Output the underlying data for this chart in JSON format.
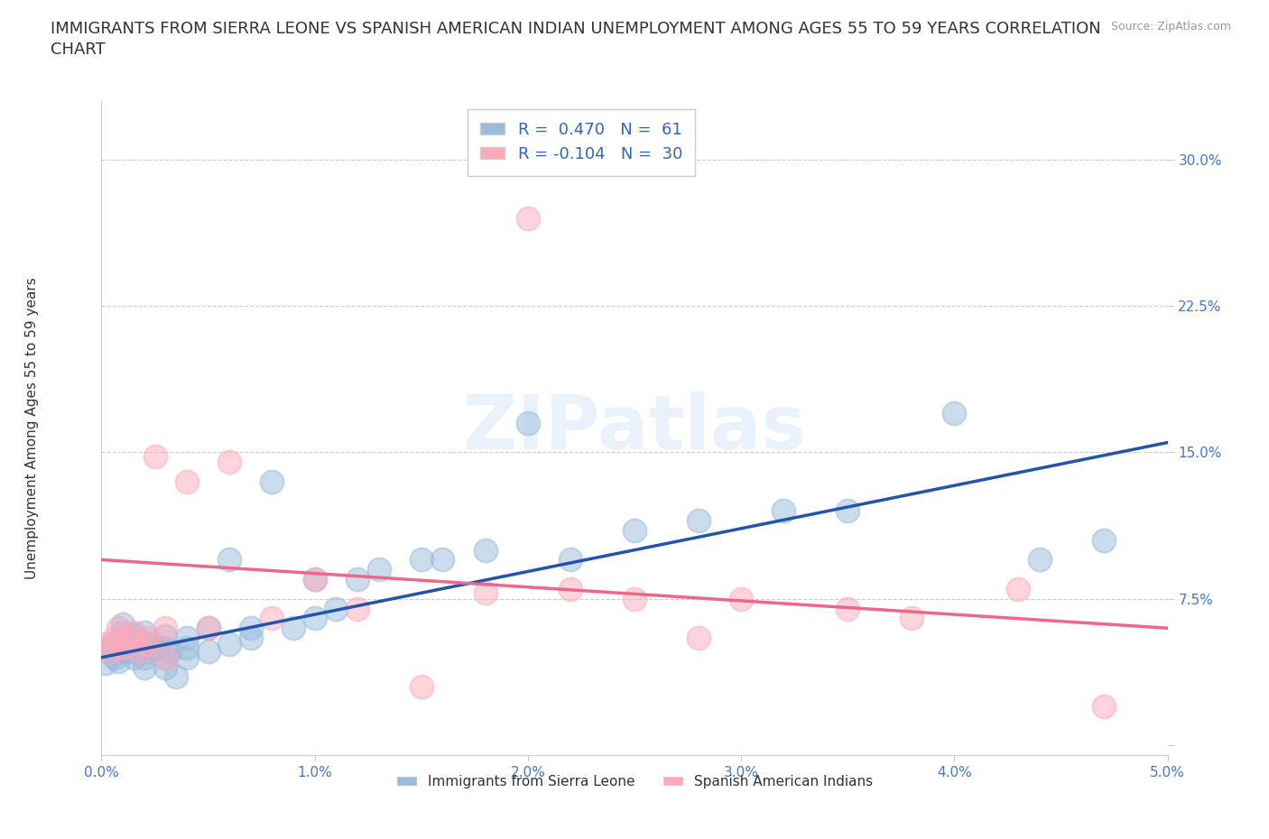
{
  "title_line1": "IMMIGRANTS FROM SIERRA LEONE VS SPANISH AMERICAN INDIAN UNEMPLOYMENT AMONG AGES 55 TO 59 YEARS CORRELATION",
  "title_line2": "CHART",
  "source_text": "Source: ZipAtlas.com",
  "ylabel": "Unemployment Among Ages 55 to 59 years",
  "xlim": [
    0.0,
    0.05
  ],
  "ylim": [
    -0.005,
    0.33
  ],
  "xticks": [
    0.0,
    0.01,
    0.02,
    0.03,
    0.04,
    0.05
  ],
  "yticks": [
    0.0,
    0.075,
    0.15,
    0.225,
    0.3
  ],
  "xticklabels": [
    "0.0%",
    "1.0%",
    "2.0%",
    "3.0%",
    "4.0%",
    "5.0%"
  ],
  "yticklabels": [
    "",
    "7.5%",
    "15.0%",
    "22.5%",
    "30.0%"
  ],
  "blue_color": "#99BBDD",
  "pink_color": "#FFAABB",
  "blue_line_color": "#2255AA",
  "pink_line_color": "#EE6688",
  "legend_R_blue": "R =  0.470",
  "legend_N_blue": "N =  61",
  "legend_R_pink": "R = -0.104",
  "legend_N_pink": "N =  30",
  "watermark": "ZIPatlas",
  "blue_scatter_x": [
    0.0002,
    0.0003,
    0.0004,
    0.0005,
    0.0006,
    0.0007,
    0.0008,
    0.0009,
    0.001,
    0.001,
    0.001,
    0.001,
    0.0012,
    0.0013,
    0.0014,
    0.0015,
    0.0016,
    0.0017,
    0.0018,
    0.0019,
    0.002,
    0.002,
    0.002,
    0.002,
    0.0022,
    0.0024,
    0.0026,
    0.003,
    0.003,
    0.003,
    0.003,
    0.0032,
    0.0035,
    0.004,
    0.004,
    0.004,
    0.005,
    0.005,
    0.006,
    0.006,
    0.007,
    0.007,
    0.008,
    0.009,
    0.01,
    0.01,
    0.011,
    0.012,
    0.013,
    0.015,
    0.016,
    0.018,
    0.02,
    0.022,
    0.025,
    0.028,
    0.032,
    0.035,
    0.04,
    0.044,
    0.047
  ],
  "blue_scatter_y": [
    0.042,
    0.048,
    0.05,
    0.052,
    0.045,
    0.047,
    0.043,
    0.05,
    0.05,
    0.055,
    0.058,
    0.062,
    0.048,
    0.053,
    0.057,
    0.045,
    0.052,
    0.048,
    0.05,
    0.053,
    0.04,
    0.045,
    0.05,
    0.058,
    0.048,
    0.052,
    0.05,
    0.04,
    0.045,
    0.05,
    0.056,
    0.048,
    0.035,
    0.045,
    0.05,
    0.055,
    0.048,
    0.06,
    0.052,
    0.095,
    0.055,
    0.06,
    0.135,
    0.06,
    0.065,
    0.085,
    0.07,
    0.085,
    0.09,
    0.095,
    0.095,
    0.1,
    0.165,
    0.095,
    0.11,
    0.115,
    0.12,
    0.12,
    0.17,
    0.095,
    0.105
  ],
  "pink_scatter_x": [
    0.0002,
    0.0004,
    0.0006,
    0.0008,
    0.001,
    0.0012,
    0.0015,
    0.0018,
    0.002,
    0.0022,
    0.0025,
    0.003,
    0.003,
    0.004,
    0.005,
    0.006,
    0.008,
    0.01,
    0.012,
    0.015,
    0.018,
    0.02,
    0.022,
    0.025,
    0.028,
    0.03,
    0.035,
    0.038,
    0.043,
    0.047
  ],
  "pink_scatter_y": [
    0.052,
    0.048,
    0.055,
    0.06,
    0.05,
    0.055,
    0.058,
    0.048,
    0.052,
    0.055,
    0.148,
    0.045,
    0.06,
    0.135,
    0.06,
    0.145,
    0.065,
    0.085,
    0.07,
    0.03,
    0.078,
    0.27,
    0.08,
    0.075,
    0.055,
    0.075,
    0.07,
    0.065,
    0.08,
    0.02
  ],
  "blue_trend_x": [
    0.0,
    0.05
  ],
  "blue_trend_y": [
    0.045,
    0.155
  ],
  "pink_trend_x": [
    0.0,
    0.05
  ],
  "pink_trend_y": [
    0.095,
    0.06
  ],
  "grid_color": "#CCCCCC",
  "background_color": "#FFFFFF",
  "title_fontsize": 13,
  "axis_label_fontsize": 11,
  "tick_fontsize": 11,
  "legend_fontsize": 13
}
